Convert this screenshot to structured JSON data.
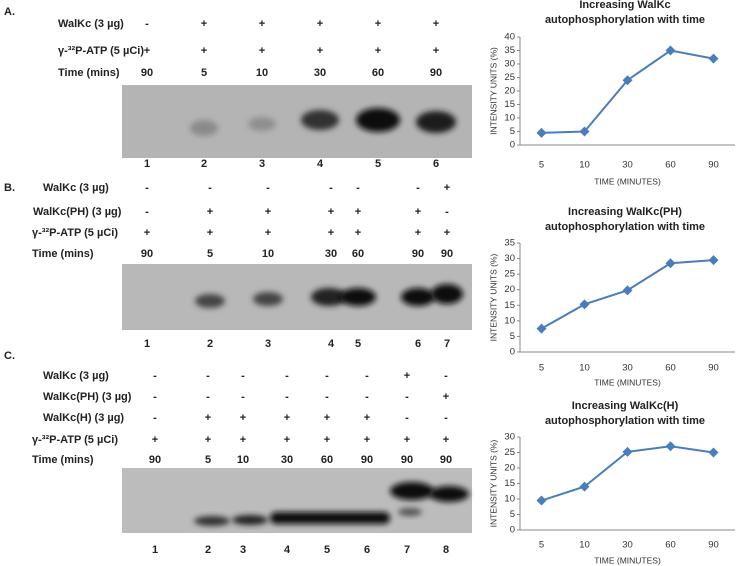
{
  "panels": [
    {
      "label": "A.",
      "rows": [
        {
          "name": "WalKc (3 µg)",
          "cells": [
            "-",
            "+",
            "+",
            "+",
            "+",
            "+"
          ]
        },
        {
          "name": "γ-³²P-ATP (5 µCi)",
          "cells": [
            "+",
            "+",
            "+",
            "+",
            "+",
            "+"
          ]
        },
        {
          "name": "Time (mins)",
          "cells": [
            "90",
            "5",
            "10",
            "30",
            "60",
            "90"
          ]
        }
      ],
      "lanes": [
        "1",
        "2",
        "3",
        "4",
        "5",
        "6"
      ]
    },
    {
      "label": "B.",
      "rows": [
        {
          "name": "WalKc (3 µg)",
          "cells": [
            "-",
            "-",
            "-",
            "-",
            "-",
            "-",
            "+"
          ]
        },
        {
          "name": "WalKc(PH) (3 µg)",
          "cells": [
            "-",
            "+",
            "+",
            "+",
            "+",
            "+",
            "-"
          ]
        },
        {
          "name": "γ-³²P-ATP (5 µCi)",
          "cells": [
            "+",
            "+",
            "+",
            "+",
            "+",
            "+",
            "+"
          ]
        },
        {
          "name": "Time (mins)",
          "cells": [
            "90",
            "5",
            "10",
            "30",
            "60",
            "90",
            "90"
          ]
        }
      ],
      "lanes": [
        "1",
        "2",
        "3",
        "4",
        "5",
        "6",
        "7"
      ]
    },
    {
      "label": "C.",
      "rows": [
        {
          "name": "WalKc (3 µg)",
          "cells": [
            "-",
            "-",
            "-",
            "-",
            "-",
            "-",
            "+",
            "-"
          ]
        },
        {
          "name": "WalKc(PH) (3 µg)",
          "cells": [
            "-",
            "-",
            "-",
            "-",
            "-",
            "-",
            "-",
            "+"
          ]
        },
        {
          "name": "WalKc(H) (3 µg)",
          "cells": [
            "-",
            "+",
            "+",
            "+",
            "+",
            "+",
            "-",
            "-"
          ]
        },
        {
          "name": "γ-³²P-ATP (5 µCi)",
          "cells": [
            "+",
            "+",
            "+",
            "+",
            "+",
            "+",
            "+",
            "+"
          ]
        },
        {
          "name": "Time (mins)",
          "cells": [
            "90",
            "5",
            "10",
            "30",
            "60",
            "90",
            "90",
            "90"
          ]
        }
      ],
      "lanes": [
        "1",
        "2",
        "3",
        "4",
        "5",
        "6",
        "7",
        "8"
      ]
    }
  ],
  "chart_data": [
    {
      "type": "line",
      "title": [
        "Increasing WalKc",
        "autophosphorylation with time"
      ],
      "x_label": "TIME (MINUTES)",
      "y_label": "INTENSITY UNITS (%)",
      "categories": [
        "5",
        "10",
        "30",
        "60",
        "90"
      ],
      "series": [
        {
          "color": "#4a7ebb",
          "values": [
            4.5,
            5,
            24,
            35,
            32
          ]
        }
      ],
      "ylim": [
        0,
        40
      ],
      "yticks": [
        0,
        5,
        10,
        15,
        20,
        25,
        30,
        35,
        40
      ]
    },
    {
      "type": "line",
      "title": [
        "Increasing WalKc(PH)",
        "autophosphorylation with time"
      ],
      "x_label": "TIME (MINUTES)",
      "y_label": "INTENSITY UNITS (%)",
      "categories": [
        "5",
        "10",
        "30",
        "60",
        "90"
      ],
      "series": [
        {
          "color": "#4a7ebb",
          "values": [
            7.5,
            15.3,
            19.8,
            28.5,
            29.5
          ]
        }
      ],
      "ylim": [
        0,
        35
      ],
      "yticks": [
        0,
        5,
        10,
        15,
        20,
        25,
        30,
        35
      ]
    },
    {
      "type": "line",
      "title": [
        "Increasing WalKc(H)",
        "autophosphorylation with time"
      ],
      "x_label": "TIME (MINUTES)",
      "y_label": "INTENSITY UNITS (%)",
      "categories": [
        "5",
        "10",
        "30",
        "60",
        "90"
      ],
      "series": [
        {
          "color": "#4a7ebb",
          "values": [
            9.5,
            14,
            25.2,
            27,
            25
          ]
        }
      ],
      "ylim": [
        0,
        30
      ],
      "yticks": [
        0,
        5,
        10,
        15,
        20,
        25,
        30
      ]
    }
  ]
}
